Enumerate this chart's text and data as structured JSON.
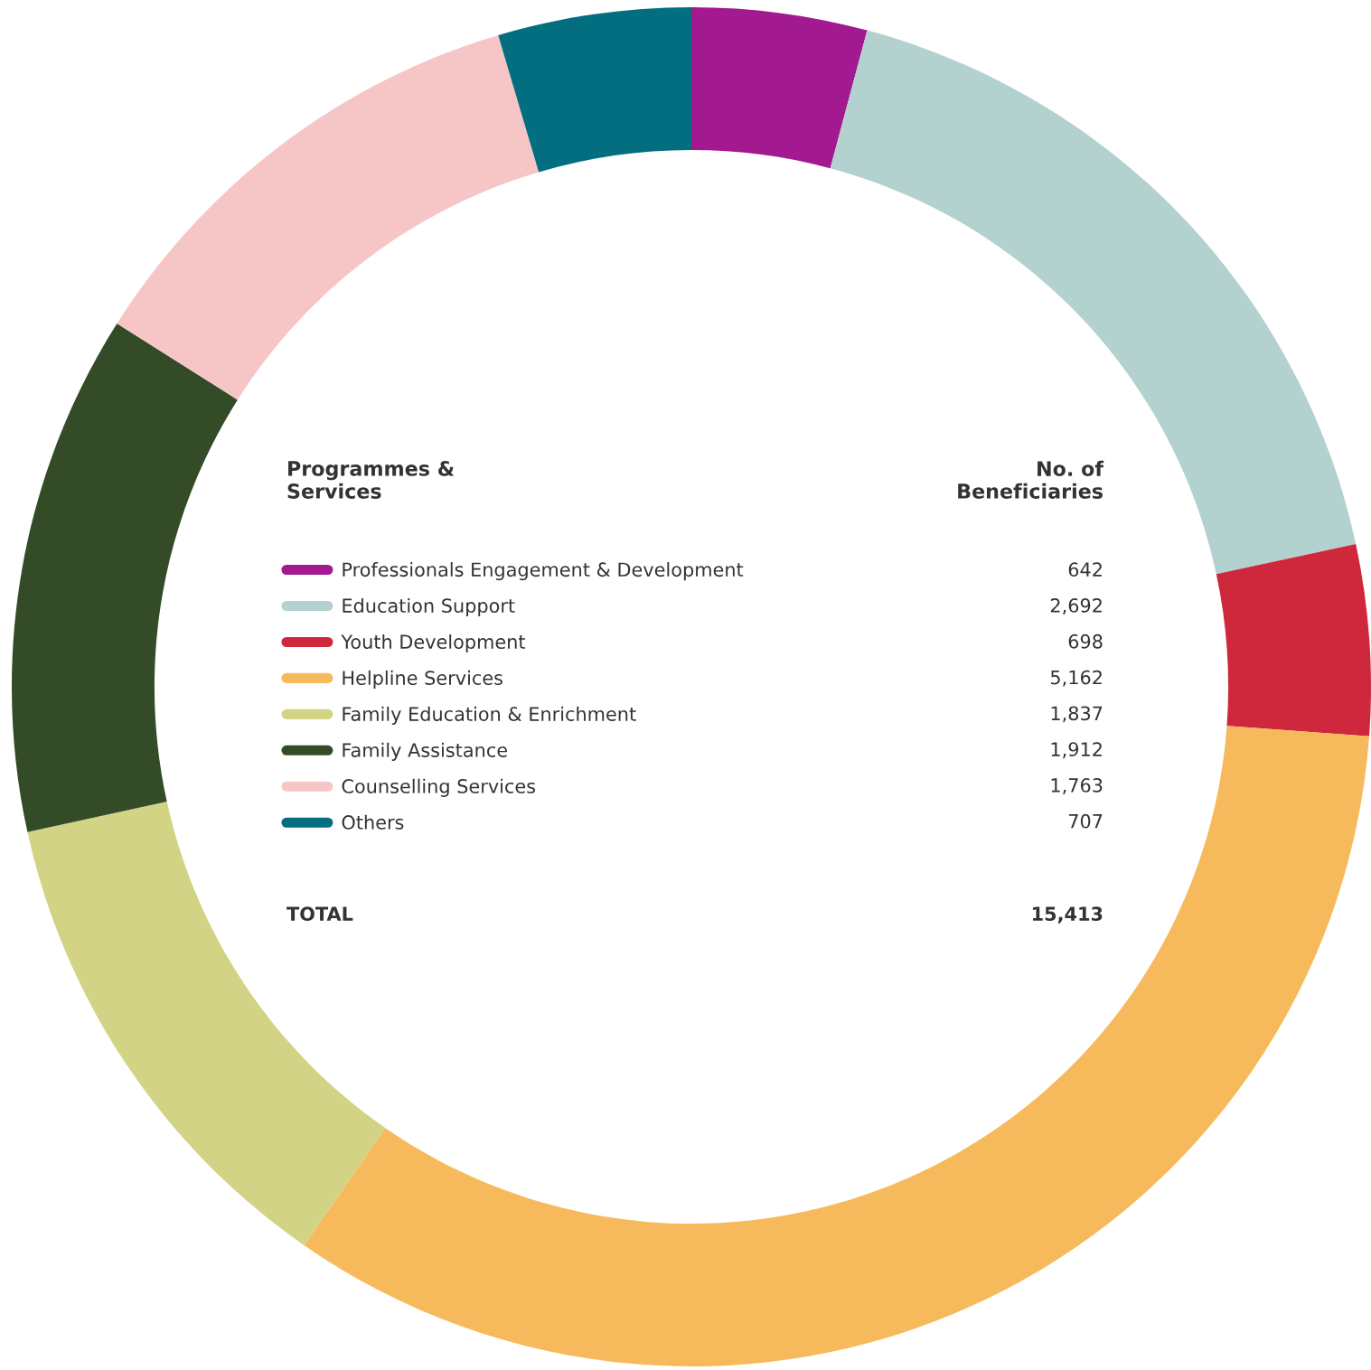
{
  "chart_data": {
    "type": "donut",
    "categories": [
      "Professionals Engagement & Development",
      "Education Support",
      "Youth Development",
      "Helpline Services",
      "Family Education & Enrichment",
      "Family Assistance",
      "Counselling Services",
      "Others"
    ],
    "values": [
      642,
      2692,
      698,
      5162,
      1837,
      1912,
      1763,
      707
    ],
    "colors": [
      "#a3198f",
      "#b3d1cf",
      "#cf283c",
      "#f6ba5c",
      "#d2d385",
      "#334b26",
      "#f6c6c7",
      "#026e80"
    ],
    "value_labels": [
      "642",
      "2,692",
      "698",
      "5,162",
      "1,837",
      "1,912",
      "1,763",
      "707"
    ],
    "legend": "center",
    "legend_title": "Programmes &\nServices",
    "annotations": [
      "No. of\nBeneficiaries",
      "TOTAL",
      "15,413"
    ]
  }
}
